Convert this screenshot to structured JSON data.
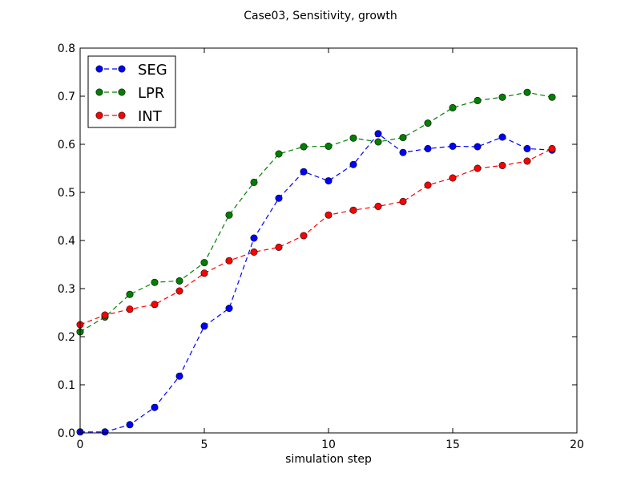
{
  "chart_data": {
    "type": "line",
    "title": "Case03, Sensitivity, growth",
    "xlabel": "simulation step",
    "ylabel": "",
    "xlim": [
      0,
      20
    ],
    "ylim": [
      0.0,
      0.8
    ],
    "xticks": [
      0,
      5,
      10,
      15,
      20
    ],
    "xtick_labels": [
      "0",
      "5",
      "10",
      "15",
      "20"
    ],
    "yticks": [
      0.0,
      0.1,
      0.2,
      0.3,
      0.4,
      0.5,
      0.6,
      0.7,
      0.8
    ],
    "ytick_labels": [
      "0.0",
      "0.1",
      "0.2",
      "0.3",
      "0.4",
      "0.5",
      "0.6",
      "0.7",
      "0.8"
    ],
    "grid": false,
    "legend_position": "top-left",
    "line_style": "dashed",
    "marker": "circle",
    "x": [
      0,
      1,
      2,
      3,
      4,
      5,
      6,
      7,
      8,
      9,
      10,
      11,
      12,
      13,
      14,
      15,
      16,
      17,
      18,
      19
    ],
    "series": [
      {
        "name": "SEG",
        "color": "#0000ff",
        "values": [
          0.002,
          0.002,
          0.017,
          0.053,
          0.118,
          0.222,
          0.259,
          0.405,
          0.488,
          0.543,
          0.524,
          0.558,
          0.622,
          0.583,
          0.591,
          0.596,
          0.595,
          0.615,
          0.591,
          0.588
        ]
      },
      {
        "name": "LPR",
        "color": "#008000",
        "values": [
          0.21,
          0.241,
          0.288,
          0.313,
          0.316,
          0.354,
          0.453,
          0.521,
          0.58,
          0.595,
          0.596,
          0.613,
          0.605,
          0.614,
          0.644,
          0.676,
          0.691,
          0.698,
          0.708,
          0.698
        ]
      },
      {
        "name": "INT",
        "color": "#ff0000",
        "values": [
          0.225,
          0.245,
          0.257,
          0.267,
          0.295,
          0.332,
          0.358,
          0.376,
          0.386,
          0.41,
          0.453,
          0.463,
          0.471,
          0.481,
          0.515,
          0.53,
          0.55,
          0.556,
          0.565,
          0.591
        ]
      }
    ]
  }
}
